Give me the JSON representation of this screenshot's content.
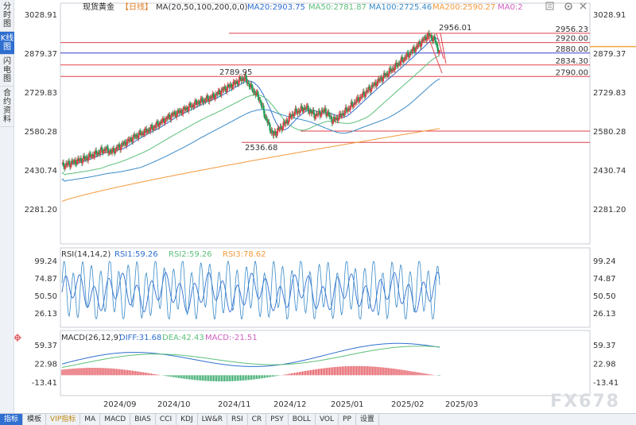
{
  "left_tabs": [
    {
      "label": "分时图",
      "active": false
    },
    {
      "label": "K线图",
      "active": true
    },
    {
      "label": "闪电图",
      "active": false
    },
    {
      "label": "合约资料",
      "active": false
    }
  ],
  "header": {
    "symbol": "现货黄金",
    "period": "【日线】",
    "ma_label": "MA(20,50,100,200,0,0)",
    "ma20": "MA20:2903.75",
    "ma50": "MA50:2781.87",
    "ma100": "MA100:2725.46",
    "ma200": "MA200:2590.27",
    "ma0": "MA0:2"
  },
  "icons": [
    "contract-icon",
    "settings-icon",
    "close-icon",
    "crosshair-icon"
  ],
  "price_axis": [
    "3028.91",
    "2879.37",
    "2729.83",
    "2580.28",
    "2430.74",
    "2281.20"
  ],
  "levels": [
    {
      "value": "2956.23",
      "color": "#e0404a"
    },
    {
      "value": "2920.00",
      "color": "#e0404a"
    },
    {
      "value": "2880.00",
      "color": "#3a3ad0"
    },
    {
      "value": "2834.30",
      "color": "#e0404a"
    },
    {
      "value": "2790.00",
      "color": "#e0404a"
    }
  ],
  "annotations": {
    "high": "2956.01",
    "mid_high": "2789.95",
    "low": "2536.68"
  },
  "rsi": {
    "label": "RSI(14,14,2)",
    "rsi1": "RSI1:59.26",
    "rsi2": "RSI2:59.26",
    "rsi3": "RSI3:78.62",
    "axis": [
      "99.24",
      "74.87",
      "50.50",
      "26.13"
    ]
  },
  "macd": {
    "label": "MACD(26,12,9)",
    "diff": "DIFF:31.68",
    "dea": "DEA:42.43",
    "macd": "MACD:-21.51",
    "axis": [
      "59.37",
      "22.98",
      "-13.41"
    ]
  },
  "dates": [
    "2024/09",
    "2024/10",
    "2024/11",
    "2024/12",
    "2025/01",
    "2025/02",
    "2025/03"
  ],
  "toolbar": [
    "指标",
    "模板",
    "VIP指标",
    "MA",
    "MACD",
    "BIAS",
    "CCI",
    "KDJ",
    "LW&R",
    "RSI",
    "CR",
    "PSY",
    "BOLL",
    "VOL",
    "PP",
    "设置"
  ],
  "watermark": "FX678",
  "colors": {
    "up": "#e0404a",
    "down": "#1fa05a",
    "ma20": "#2f6fd0",
    "ma50": "#5cbf7a",
    "ma100": "#3a8ac8",
    "ma200": "#f39a3c"
  }
}
